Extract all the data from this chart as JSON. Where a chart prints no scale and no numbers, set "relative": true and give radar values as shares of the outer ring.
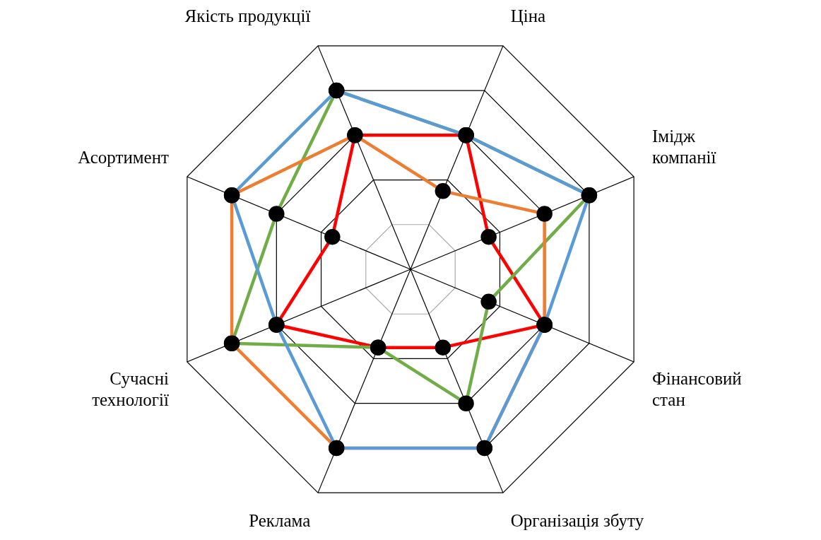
{
  "chart_data": {
    "type": "radar",
    "relative": true,
    "grid": true,
    "marker": "circle",
    "categories": [
      "Якість продукції",
      "Ціна",
      "Імідж компанії",
      "Фінансовий стан",
      "Організація збуту",
      "Реклама",
      "Сучасні технології",
      "Асортимент"
    ],
    "series": [
      {
        "color": "#5b9bd5",
        "values": [
          0.8,
          0.6,
          0.8,
          0.6,
          0.8,
          0.8,
          0.6,
          0.8
        ]
      },
      {
        "color": "#ed7d31",
        "values": [
          0.6,
          0.35,
          0.6,
          0.6,
          0.8,
          0.8,
          0.8,
          0.8
        ]
      },
      {
        "color": "#70ad47",
        "values": [
          0.8,
          0.6,
          0.8,
          0.35,
          0.6,
          0.35,
          0.8,
          0.6
        ]
      },
      {
        "color": "#ff0000",
        "values": [
          0.6,
          0.6,
          0.35,
          0.6,
          0.35,
          0.35,
          0.6,
          0.35
        ]
      }
    ]
  }
}
